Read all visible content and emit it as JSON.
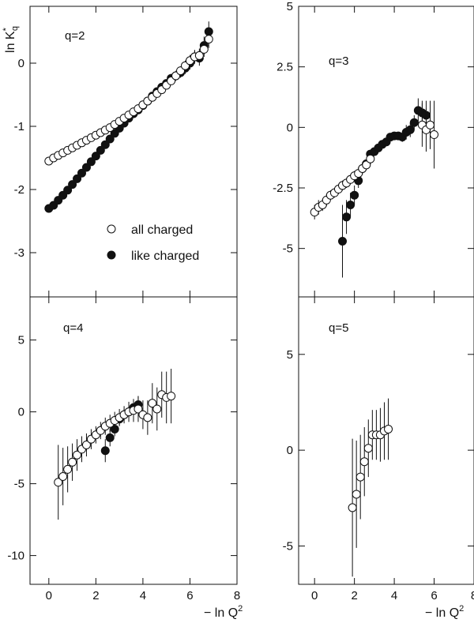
{
  "figure": {
    "ylabel": "ln K",
    "ylabel_sub": "q",
    "ylabel_sup": "*",
    "xlabel": "− ln Q",
    "xlabel_sup": "2"
  },
  "legend": {
    "all_charged": "all charged",
    "like_charged": "like charged"
  },
  "chart_data": [
    {
      "type": "scatter",
      "title": "q=2",
      "xlim": [
        -0.8,
        8
      ],
      "ylim": [
        -3.7,
        0.9
      ],
      "x_ticks": [
        0,
        2,
        4,
        6,
        8
      ],
      "y_ticks": [
        0,
        -1,
        -2,
        -3
      ],
      "y_tick_labels": [
        "0",
        "-1",
        "-2",
        "-3"
      ],
      "series": [
        {
          "name": "all charged",
          "marker": "open",
          "x": [
            0.0,
            0.2,
            0.4,
            0.6,
            0.8,
            1.0,
            1.2,
            1.4,
            1.6,
            1.8,
            2.0,
            2.2,
            2.4,
            2.6,
            2.8,
            3.0,
            3.2,
            3.4,
            3.6,
            3.8,
            4.0,
            4.2,
            4.4,
            4.6,
            4.8,
            5.0,
            5.2,
            5.4,
            5.6,
            5.8,
            6.0,
            6.2,
            6.4,
            6.6,
            6.8
          ],
          "y": [
            -1.55,
            -1.5,
            -1.46,
            -1.42,
            -1.38,
            -1.34,
            -1.3,
            -1.26,
            -1.22,
            -1.18,
            -1.14,
            -1.1,
            -1.06,
            -1.02,
            -0.97,
            -0.92,
            -0.87,
            -0.82,
            -0.77,
            -0.72,
            -0.66,
            -0.6,
            -0.54,
            -0.48,
            -0.42,
            -0.35,
            -0.28,
            -0.2,
            -0.12,
            -0.04,
            0.04,
            0.1,
            0.12,
            0.22,
            0.38
          ],
          "err": [
            0.02,
            0.02,
            0.02,
            0.02,
            0.02,
            0.02,
            0.02,
            0.02,
            0.02,
            0.02,
            0.02,
            0.02,
            0.02,
            0.02,
            0.02,
            0.02,
            0.02,
            0.02,
            0.03,
            0.03,
            0.03,
            0.03,
            0.04,
            0.04,
            0.05,
            0.05,
            0.06,
            0.07,
            0.07,
            0.08,
            0.09,
            0.1,
            0.11,
            0.12,
            0.14
          ]
        },
        {
          "name": "like charged",
          "marker": "filled",
          "x": [
            0.0,
            0.2,
            0.4,
            0.6,
            0.8,
            1.0,
            1.2,
            1.4,
            1.6,
            1.8,
            2.0,
            2.2,
            2.4,
            2.6,
            2.8,
            3.0,
            3.2,
            3.4,
            3.6,
            3.8,
            4.0,
            4.2,
            4.4,
            4.6,
            4.8,
            5.0,
            5.2,
            5.4,
            5.6,
            5.8,
            6.0,
            6.2,
            6.4,
            6.6,
            6.8
          ],
          "y": [
            -2.3,
            -2.25,
            -2.17,
            -2.09,
            -2.01,
            -1.92,
            -1.83,
            -1.74,
            -1.65,
            -1.56,
            -1.47,
            -1.38,
            -1.29,
            -1.2,
            -1.11,
            -1.03,
            -0.95,
            -0.87,
            -0.8,
            -0.74,
            -0.67,
            -0.6,
            -0.52,
            -0.45,
            -0.38,
            -0.32,
            -0.24,
            -0.2,
            -0.15,
            -0.08,
            0.0,
            0.1,
            0.08,
            0.28,
            0.5
          ],
          "err": [
            0.03,
            0.03,
            0.03,
            0.03,
            0.03,
            0.03,
            0.03,
            0.03,
            0.03,
            0.03,
            0.03,
            0.03,
            0.03,
            0.03,
            0.03,
            0.03,
            0.03,
            0.03,
            0.03,
            0.04,
            0.04,
            0.04,
            0.05,
            0.05,
            0.06,
            0.06,
            0.07,
            0.08,
            0.08,
            0.09,
            0.1,
            0.11,
            0.12,
            0.14,
            0.16
          ]
        }
      ]
    },
    {
      "type": "scatter",
      "title": "q=3",
      "xlim": [
        -0.8,
        8
      ],
      "ylim": [
        -7.0,
        5.0
      ],
      "x_ticks": [
        0,
        2,
        4,
        6,
        8
      ],
      "y_ticks": [
        5,
        2.5,
        0,
        -2.5,
        -5
      ],
      "y_tick_labels": [
        "5",
        "2.5",
        "0",
        "-2.5",
        "-5"
      ],
      "series": [
        {
          "name": "all charged",
          "marker": "open",
          "x": [
            0.0,
            0.2,
            0.4,
            0.6,
            0.8,
            1.0,
            1.2,
            1.4,
            1.6,
            1.8,
            2.0,
            2.2,
            2.4,
            2.6,
            2.8,
            5.4,
            5.6,
            5.8,
            6.0
          ],
          "y": [
            -3.5,
            -3.3,
            -3.2,
            -3.0,
            -2.8,
            -2.7,
            -2.55,
            -2.4,
            -2.3,
            -2.15,
            -2.0,
            -1.9,
            -1.7,
            -1.55,
            -1.3,
            0.1,
            -0.1,
            0.1,
            -0.3
          ],
          "err": [
            0.3,
            0.3,
            0.25,
            0.25,
            0.2,
            0.2,
            0.2,
            0.2,
            0.2,
            0.2,
            0.2,
            0.2,
            0.2,
            0.2,
            0.2,
            0.9,
            0.9,
            1.0,
            1.4
          ]
        },
        {
          "name": "like charged",
          "marker": "filled",
          "x": [
            1.4,
            1.6,
            1.8,
            2.0,
            2.2,
            2.4,
            2.6,
            2.8,
            3.0,
            3.2,
            3.4,
            3.6,
            3.8,
            4.0,
            4.2,
            4.4,
            4.6,
            4.8,
            5.0,
            5.2,
            5.4,
            5.6
          ],
          "y": [
            -4.7,
            -3.7,
            -3.2,
            -2.8,
            -2.2,
            -1.7,
            -1.5,
            -1.1,
            -1.0,
            -0.85,
            -0.7,
            -0.6,
            -0.4,
            -0.35,
            -0.35,
            -0.4,
            -0.2,
            -0.1,
            0.2,
            0.7,
            0.6,
            0.5
          ],
          "err": [
            1.5,
            0.7,
            0.5,
            0.4,
            0.3,
            0.25,
            0.2,
            0.15,
            0.15,
            0.15,
            0.15,
            0.15,
            0.15,
            0.15,
            0.15,
            0.2,
            0.3,
            0.3,
            0.3,
            0.5,
            0.5,
            0.6
          ]
        }
      ]
    },
    {
      "type": "scatter",
      "title": "q=4",
      "xlim": [
        -0.8,
        8
      ],
      "ylim": [
        -12,
        8
      ],
      "x_ticks": [
        0,
        2,
        4,
        6,
        8
      ],
      "y_ticks": [
        5,
        0,
        -5,
        -10
      ],
      "y_tick_labels": [
        "5",
        "0",
        "-5",
        "-10"
      ],
      "series": [
        {
          "name": "all charged",
          "marker": "open",
          "x": [
            0.4,
            0.6,
            0.8,
            1.0,
            1.2,
            1.4,
            1.6,
            1.8,
            2.0,
            2.2,
            2.4,
            2.6,
            2.8,
            3.0,
            3.2,
            3.4,
            3.6,
            3.8,
            4.0,
            4.2,
            4.4,
            4.6,
            4.8,
            5.0,
            5.2
          ],
          "y": [
            -4.9,
            -4.5,
            -4.0,
            -3.5,
            -3.0,
            -2.6,
            -2.3,
            -1.9,
            -1.6,
            -1.3,
            -1.0,
            -0.8,
            -0.6,
            -0.4,
            -0.2,
            0.0,
            0.1,
            0.2,
            -0.2,
            -0.4,
            0.6,
            0.2,
            1.2,
            1.0,
            1.1
          ],
          "err": [
            2.6,
            2.0,
            1.6,
            1.3,
            1.1,
            0.9,
            0.8,
            0.7,
            0.6,
            0.6,
            0.6,
            0.6,
            0.6,
            0.6,
            0.6,
            0.7,
            0.8,
            0.9,
            1.0,
            1.2,
            1.4,
            1.5,
            1.6,
            1.8,
            1.9
          ]
        },
        {
          "name": "like charged",
          "marker": "filled",
          "x": [
            2.4,
            2.6,
            2.8,
            3.0,
            3.2,
            3.4,
            3.6,
            3.8
          ],
          "y": [
            -2.7,
            -1.8,
            -1.2,
            -0.5,
            -0.2,
            0.0,
            0.3,
            0.5
          ],
          "err": [
            0.8,
            0.6,
            0.5,
            0.4,
            0.4,
            0.4,
            0.5,
            0.6
          ]
        }
      ]
    },
    {
      "type": "scatter",
      "title": "q=5",
      "xlim": [
        -0.8,
        8
      ],
      "ylim": [
        -7,
        8
      ],
      "x_ticks": [
        0,
        2,
        4,
        6,
        8
      ],
      "y_ticks": [
        5,
        0,
        -5
      ],
      "y_tick_labels": [
        "5",
        "0",
        "-5"
      ],
      "series": [
        {
          "name": "all charged",
          "marker": "open",
          "x": [
            1.9,
            2.1,
            2.3,
            2.5,
            2.7,
            2.9,
            3.1,
            3.3,
            3.5,
            3.7
          ],
          "y": [
            -3.0,
            -2.3,
            -1.4,
            -0.6,
            0.1,
            0.8,
            0.8,
            0.8,
            1.0,
            1.1
          ],
          "err": [
            3.6,
            2.8,
            2.2,
            1.8,
            1.5,
            1.3,
            1.3,
            1.4,
            1.5,
            1.6
          ]
        }
      ]
    }
  ]
}
